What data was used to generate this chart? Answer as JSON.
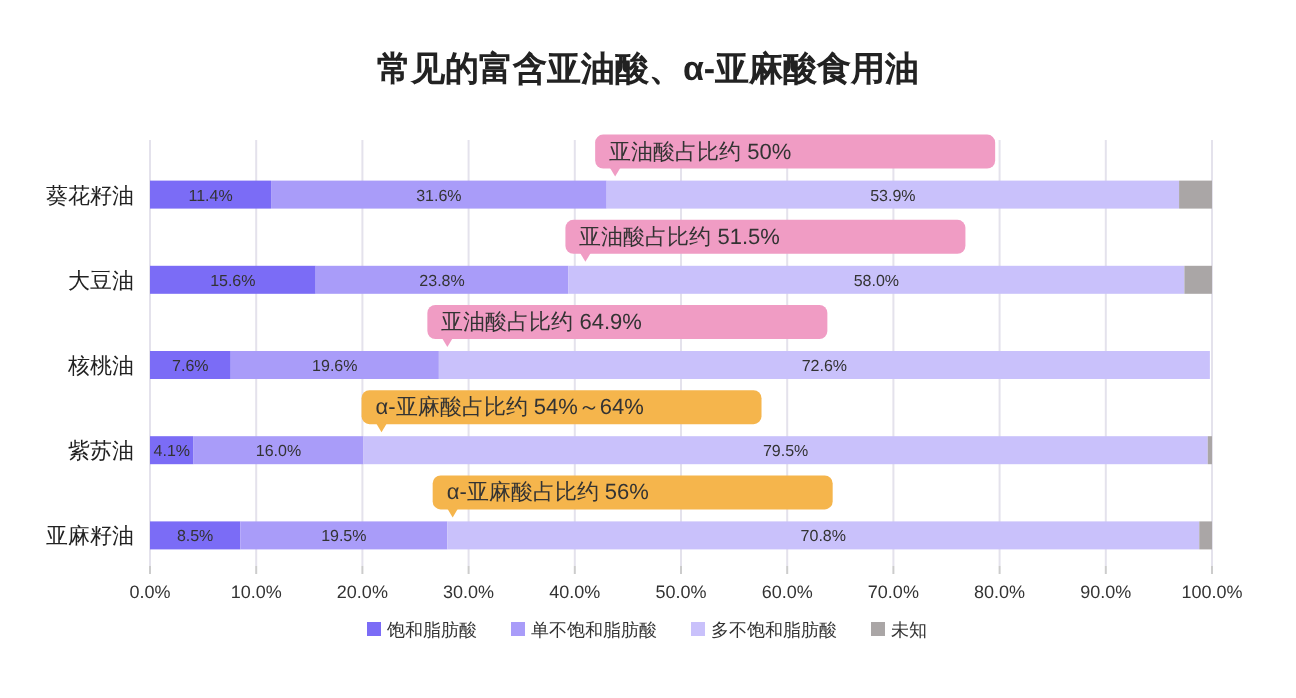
{
  "chart_data": {
    "type": "bar",
    "orientation": "horizontal",
    "stacked": true,
    "title": "常见的富含亚油酸、α-亚麻酸食用油",
    "categories": [
      "葵花籽油",
      "大豆油",
      "核桃油",
      "紫苏油",
      "亚麻籽油"
    ],
    "series": [
      {
        "name": "饱和脂肪酸",
        "color": "#7b6cf6",
        "values": [
          11.4,
          15.6,
          7.6,
          4.1,
          8.5
        ],
        "value_labels": [
          "11.4%",
          "15.6%",
          "7.6%",
          "4.1%",
          "8.5%"
        ]
      },
      {
        "name": "单不饱和脂肪酸",
        "color": "#a99cf9",
        "values": [
          31.6,
          23.8,
          19.6,
          16.0,
          19.5
        ],
        "value_labels": [
          "31.6%",
          "23.8%",
          "19.6%",
          "16.0%",
          "19.5%"
        ]
      },
      {
        "name": "多不饱和脂肪酸",
        "color": "#c9c1fb",
        "values": [
          53.9,
          58.0,
          72.6,
          79.5,
          70.8
        ],
        "value_labels": [
          "53.9%",
          "58.0%",
          "72.6%",
          "79.5%",
          "70.8%"
        ]
      },
      {
        "name": "未知",
        "color": "#aaa6a6",
        "values": [
          3.1,
          2.6,
          null,
          0.4,
          1.2
        ],
        "value_labels": [
          null,
          null,
          null,
          null,
          null
        ]
      }
    ],
    "xlim": [
      0,
      100
    ],
    "xticks": [
      {
        "value": 0,
        "label": "0.0%"
      },
      {
        "value": 10,
        "label": "10.0%"
      },
      {
        "value": 20,
        "label": "20.0%"
      },
      {
        "value": 30,
        "label": "30.0%"
      },
      {
        "value": 40,
        "label": "40.0%"
      },
      {
        "value": 50,
        "label": "50.0%"
      },
      {
        "value": 60,
        "label": "60.0%"
      },
      {
        "value": 70,
        "label": "70.0%"
      },
      {
        "value": 80,
        "label": "80.0%"
      },
      {
        "value": 90,
        "label": "90.0%"
      },
      {
        "value": 100,
        "label": "100.0%"
      }
    ],
    "grid": "x",
    "legend": "bottom",
    "annotations": [
      "亚油酸占比约 50%",
      "亚油酸占比约 51.5%",
      "亚油酸占比约 64.9%",
      "α-亚麻酸占比约 54%～64%",
      "α-亚麻酸占比约 56%"
    ]
  }
}
